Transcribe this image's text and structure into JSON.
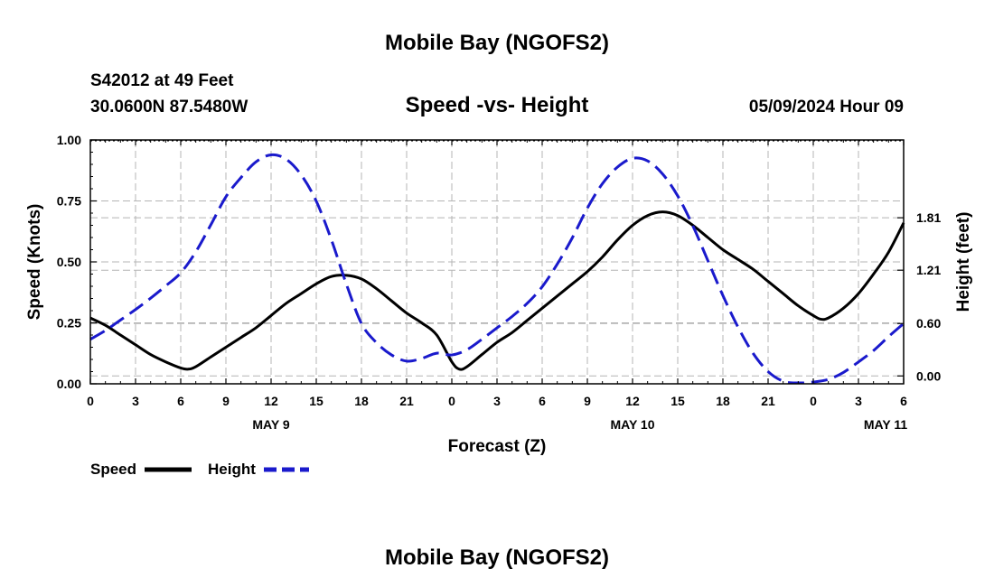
{
  "title": "Mobile Bay (NGOFS2)",
  "footer_title": "Mobile Bay (NGOFS2)",
  "station": "S42012 at 49 Feet",
  "coordinates": "30.0600N  87.5480W",
  "run_time": "05/09/2024 Hour 09",
  "colors": {
    "speed": "#000000",
    "height": "#1a1acc",
    "grid": "#b4b4b4"
  },
  "chart_data": {
    "type": "line",
    "title": "Speed -vs- Height",
    "xlabel": "Forecast (Z)",
    "ylabel": "Speed (Knots)",
    "y2label": "Height (feet)",
    "x_unit": "hours from 2024-05-09 00Z",
    "xlim": [
      0,
      54
    ],
    "ylim": [
      0,
      1
    ],
    "y2lim": [
      -0.09,
      2.7
    ],
    "grid": true,
    "legend_position": "bottom-left",
    "x_ticks": [
      {
        "x": 0,
        "label": "0"
      },
      {
        "x": 3,
        "label": "3"
      },
      {
        "x": 6,
        "label": "6"
      },
      {
        "x": 9,
        "label": "9"
      },
      {
        "x": 12,
        "label": "12"
      },
      {
        "x": 15,
        "label": "15"
      },
      {
        "x": 18,
        "label": "18"
      },
      {
        "x": 21,
        "label": "21"
      },
      {
        "x": 24,
        "label": "0"
      },
      {
        "x": 27,
        "label": "3"
      },
      {
        "x": 30,
        "label": "6"
      },
      {
        "x": 33,
        "label": "9"
      },
      {
        "x": 36,
        "label": "12"
      },
      {
        "x": 39,
        "label": "15"
      },
      {
        "x": 42,
        "label": "18"
      },
      {
        "x": 45,
        "label": "21"
      },
      {
        "x": 48,
        "label": "0"
      },
      {
        "x": 51,
        "label": "3"
      },
      {
        "x": 54,
        "label": "6"
      }
    ],
    "date_labels": [
      {
        "x": 12,
        "label": "MAY 9"
      },
      {
        "x": 36,
        "label": "MAY 10"
      },
      {
        "x": 52.8,
        "label": "MAY 11"
      }
    ],
    "y_ticks": [
      {
        "y": 0.0,
        "label": "0.00"
      },
      {
        "y": 0.25,
        "label": "0.25"
      },
      {
        "y": 0.5,
        "label": "0.50"
      },
      {
        "y": 0.75,
        "label": "0.75"
      },
      {
        "y": 1.0,
        "label": "1.00"
      }
    ],
    "y2_ticks": [
      {
        "y": 0.0,
        "label": "0.00"
      },
      {
        "y": 0.6,
        "label": "0.60"
      },
      {
        "y": 1.21,
        "label": "1.21"
      },
      {
        "y": 1.81,
        "label": "1.81"
      }
    ],
    "series": [
      {
        "name": "Speed",
        "axis": "left",
        "style": "solid",
        "x": [
          0,
          1,
          2,
          3,
          4,
          5,
          6,
          6.5,
          7,
          8,
          9,
          10,
          11,
          12,
          13,
          14,
          15,
          16,
          17,
          18,
          19,
          20,
          21,
          22,
          23,
          24,
          24.5,
          25,
          26,
          27,
          28,
          29,
          30,
          31,
          32,
          33,
          34,
          35,
          36,
          37,
          38,
          39,
          40,
          41,
          42,
          43,
          44,
          45,
          46,
          47,
          48,
          48.5,
          49,
          50,
          51,
          52,
          53,
          54
        ],
        "values": [
          0.27,
          0.24,
          0.2,
          0.16,
          0.12,
          0.09,
          0.065,
          0.06,
          0.07,
          0.11,
          0.15,
          0.19,
          0.23,
          0.28,
          0.33,
          0.37,
          0.41,
          0.44,
          0.445,
          0.43,
          0.39,
          0.34,
          0.29,
          0.25,
          0.2,
          0.09,
          0.06,
          0.07,
          0.12,
          0.17,
          0.21,
          0.26,
          0.31,
          0.36,
          0.41,
          0.46,
          0.52,
          0.59,
          0.65,
          0.69,
          0.705,
          0.69,
          0.65,
          0.6,
          0.55,
          0.51,
          0.47,
          0.42,
          0.37,
          0.32,
          0.28,
          0.265,
          0.27,
          0.31,
          0.37,
          0.45,
          0.54,
          0.66
        ]
      },
      {
        "name": "Height",
        "axis": "right",
        "style": "dashed",
        "x": [
          0,
          1,
          2,
          3,
          4,
          5,
          6,
          7,
          8,
          9,
          10,
          11,
          12,
          13,
          14,
          15,
          16,
          17,
          18,
          19,
          20,
          21,
          22,
          23,
          24,
          25,
          26,
          27,
          28,
          29,
          30,
          31,
          32,
          33,
          34,
          35,
          36,
          37,
          38,
          39,
          40,
          41,
          42,
          43,
          44,
          45,
          46,
          47,
          48,
          49,
          50,
          51,
          52,
          53,
          54
        ],
        "values": [
          0.42,
          0.52,
          0.64,
          0.76,
          0.89,
          1.03,
          1.18,
          1.42,
          1.73,
          2.05,
          2.27,
          2.45,
          2.53,
          2.48,
          2.3,
          2.0,
          1.56,
          1.05,
          0.6,
          0.38,
          0.24,
          0.17,
          0.2,
          0.26,
          0.24,
          0.3,
          0.42,
          0.55,
          0.68,
          0.83,
          1.02,
          1.28,
          1.58,
          1.92,
          2.2,
          2.39,
          2.49,
          2.46,
          2.31,
          2.06,
          1.72,
          1.32,
          0.92,
          0.56,
          0.26,
          0.05,
          -0.06,
          -0.08,
          -0.07,
          -0.04,
          0.04,
          0.16,
          0.29,
          0.45,
          0.6
        ]
      }
    ]
  }
}
